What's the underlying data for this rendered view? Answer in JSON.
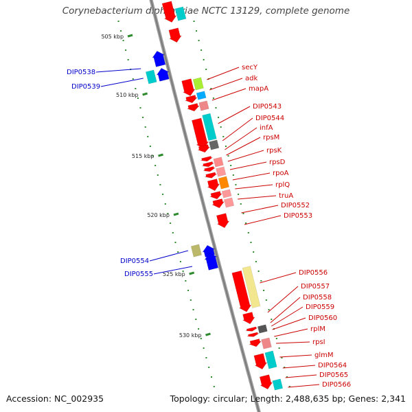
{
  "title": "Corynebacterium diphtheriae NCTC 13129, complete genome",
  "footer": {
    "accession": "Accession: NC_002935",
    "topology": "Topology: circular; Length: 2,488,635 bp; Genes: 2,341"
  },
  "colors": {
    "forward_cds": "#ff0000",
    "reverse_cds": "#0000ff",
    "forward_label": "#cc0000",
    "reverse_label": "#0000cc",
    "backbone": "#808080",
    "tick": "#2e8b2e"
  },
  "scale": {
    "ticks": [
      "505 kbp",
      "510 kbp",
      "515 kbp",
      "520 kbp",
      "525 kbp",
      "530 kbp"
    ]
  },
  "genes_forward": [
    "secY",
    "adk",
    "mapA",
    "DIP0543",
    "DIP0544",
    "infA",
    "rpsM",
    "rpsK",
    "rpsD",
    "rpoA",
    "rplQ",
    "truA",
    "DIP0552",
    "DIP0553",
    "DIP0556",
    "DIP0557",
    "DIP0558",
    "DIP0559",
    "DIP0560",
    "rplM",
    "rpsI",
    "glmM",
    "DIP0564",
    "DIP0565",
    "DIP0566"
  ],
  "genes_reverse": [
    "DIP0538",
    "DIP0539",
    "DIP0554",
    "DIP0555"
  ]
}
